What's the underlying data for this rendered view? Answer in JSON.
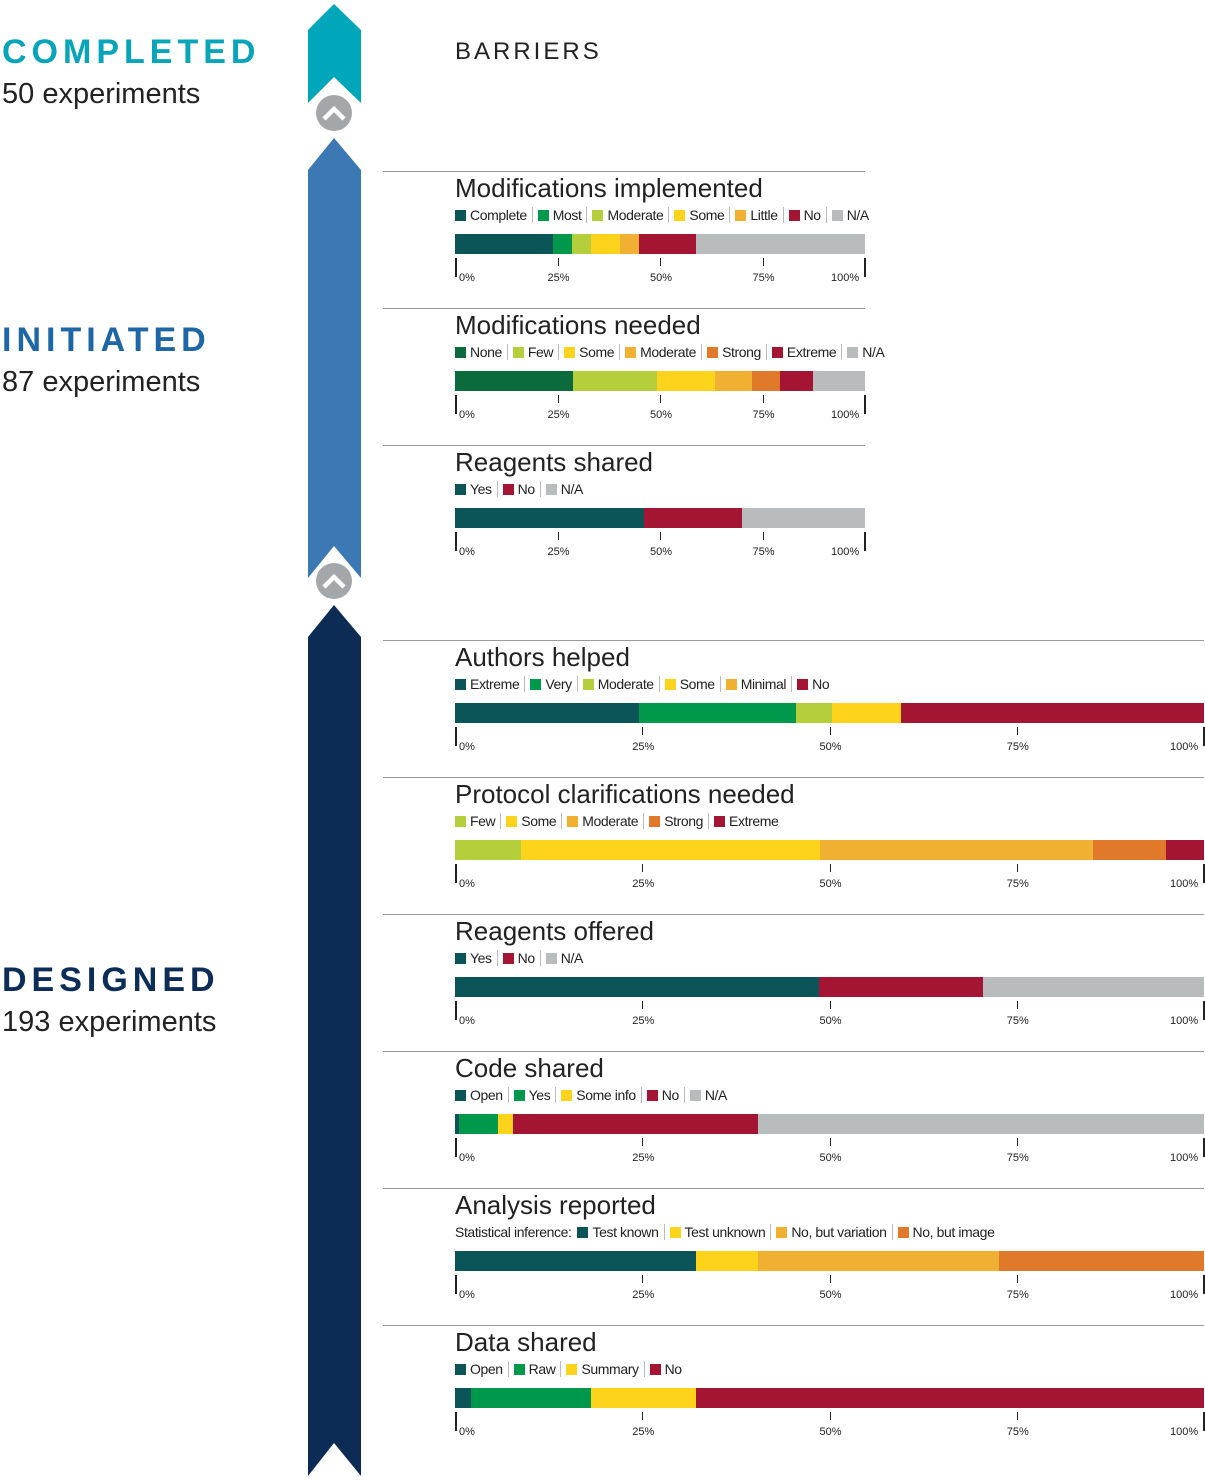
{
  "stages": [
    {
      "label": "COMPLETED",
      "count": "50 experiments",
      "color": "#06a5b9"
    },
    {
      "label": "INITIATED",
      "count": "87 experiments",
      "color": "#1f66a6"
    },
    {
      "label": "DESIGNED",
      "count": "193 experiments",
      "color": "#0c2d57"
    }
  ],
  "arrow_colors": [
    "#00a7bb",
    "#3c78b4",
    "#0c2c56"
  ],
  "arrow_icon": "chevron-up-circle-icon",
  "heading": "BARRIERS",
  "colors": {
    "teal": "#0b5559",
    "darkgreen": "#0b6b3d",
    "green": "#00994c",
    "lime": "#b5cf3c",
    "yellow": "#fdd31b",
    "amber": "#f0b133",
    "orange": "#e07a2a",
    "red": "#a31532",
    "gray": "#b8bcbd"
  },
  "chart_data": [
    {
      "type": "bar",
      "stacked": true,
      "orientation": "horizontal",
      "stage": "COMPLETED",
      "title": "Modifications implemented",
      "xlim": [
        0,
        100
      ],
      "ticks": [
        "0%",
        "25%",
        "50%",
        "75%",
        "100%"
      ],
      "series": [
        {
          "name": "Complete",
          "value": 24,
          "color": "teal"
        },
        {
          "name": "Most",
          "value": 4.6,
          "color": "green"
        },
        {
          "name": "Moderate",
          "value": 4.6,
          "color": "lime"
        },
        {
          "name": "Some",
          "value": 7,
          "color": "yellow"
        },
        {
          "name": "Little",
          "value": 4.6,
          "color": "amber"
        },
        {
          "name": "No",
          "value": 13.9,
          "color": "red"
        },
        {
          "name": "N/A",
          "value": 41.3,
          "color": "gray"
        }
      ]
    },
    {
      "type": "bar",
      "stacked": true,
      "orientation": "horizontal",
      "stage": "INITIATED",
      "title": "Modifications needed",
      "xlim": [
        0,
        100
      ],
      "ticks": [
        "0%",
        "25%",
        "50%",
        "75%",
        "100%"
      ],
      "series": [
        {
          "name": "None",
          "value": 28.7,
          "color": "darkgreen"
        },
        {
          "name": "Few",
          "value": 20.6,
          "color": "lime"
        },
        {
          "name": "Some",
          "value": 14,
          "color": "yellow"
        },
        {
          "name": "Moderate",
          "value": 9.1,
          "color": "amber"
        },
        {
          "name": "Strong",
          "value": 6.9,
          "color": "orange"
        },
        {
          "name": "Extreme",
          "value": 8.1,
          "color": "red"
        },
        {
          "name": "N/A",
          "value": 12.6,
          "color": "gray"
        }
      ]
    },
    {
      "type": "bar",
      "stacked": true,
      "orientation": "horizontal",
      "stage": "INITIATED",
      "title": "Reagents shared",
      "xlim": [
        0,
        100
      ],
      "ticks": [
        "0%",
        "25%",
        "50%",
        "75%",
        "100%"
      ],
      "series": [
        {
          "name": "Yes",
          "value": 46,
          "color": "teal"
        },
        {
          "name": "No",
          "value": 24.1,
          "color": "red"
        },
        {
          "name": "N/A",
          "value": 29.9,
          "color": "gray"
        }
      ]
    },
    {
      "type": "bar",
      "stacked": true,
      "orientation": "horizontal",
      "stage": "DESIGNED",
      "title": "Authors helped",
      "xlim": [
        0,
        100
      ],
      "ticks": [
        "0%",
        "25%",
        "50%",
        "75%",
        "100%"
      ],
      "series": [
        {
          "name": "Extreme",
          "value": 24.6,
          "color": "teal"
        },
        {
          "name": "Very",
          "value": 20.9,
          "color": "green"
        },
        {
          "name": "Moderate",
          "value": 4.8,
          "color": "lime"
        },
        {
          "name": "Some",
          "value": 9.3,
          "color": "yellow"
        },
        {
          "name": "Minimal",
          "value": 0,
          "color": "amber"
        },
        {
          "name": "No",
          "value": 40.4,
          "color": "red"
        }
      ]
    },
    {
      "type": "bar",
      "stacked": true,
      "orientation": "horizontal",
      "stage": "DESIGNED",
      "title": "Protocol clarifications needed",
      "xlim": [
        0,
        100
      ],
      "ticks": [
        "0%",
        "25%",
        "50%",
        "75%",
        "100%"
      ],
      "series": [
        {
          "name": "Few",
          "value": 8.8,
          "color": "lime"
        },
        {
          "name": "Some",
          "value": 39.9,
          "color": "yellow"
        },
        {
          "name": "Moderate",
          "value": 36.5,
          "color": "amber"
        },
        {
          "name": "Strong",
          "value": 9.7,
          "color": "orange"
        },
        {
          "name": "Extreme",
          "value": 5.1,
          "color": "red"
        }
      ]
    },
    {
      "type": "bar",
      "stacked": true,
      "orientation": "horizontal",
      "stage": "DESIGNED",
      "title": "Reagents offered",
      "xlim": [
        0,
        100
      ],
      "ticks": [
        "0%",
        "25%",
        "50%",
        "75%",
        "100%"
      ],
      "series": [
        {
          "name": "Yes",
          "value": 48.6,
          "color": "teal"
        },
        {
          "name": "No",
          "value": 21.9,
          "color": "red"
        },
        {
          "name": "N/A",
          "value": 29.5,
          "color": "gray"
        }
      ]
    },
    {
      "type": "bar",
      "stacked": true,
      "orientation": "horizontal",
      "stage": "DESIGNED",
      "title": "Code shared",
      "xlim": [
        0,
        100
      ],
      "ticks": [
        "0%",
        "25%",
        "50%",
        "75%",
        "100%"
      ],
      "series": [
        {
          "name": "Open",
          "value": 0.6,
          "color": "teal"
        },
        {
          "name": "Yes",
          "value": 5.1,
          "color": "green"
        },
        {
          "name": "Some info",
          "value": 2.1,
          "color": "yellow"
        },
        {
          "name": "No",
          "value": 32.6,
          "color": "red"
        },
        {
          "name": "N/A",
          "value": 59.6,
          "color": "gray"
        }
      ]
    },
    {
      "type": "bar",
      "stacked": true,
      "orientation": "horizontal",
      "stage": "DESIGNED",
      "title": "Analysis reported",
      "legend_prefix": "Statistical inference:",
      "xlim": [
        0,
        100
      ],
      "ticks": [
        "0%",
        "25%",
        "50%",
        "75%",
        "100%"
      ],
      "series": [
        {
          "name": "Test known",
          "value": 32.2,
          "color": "teal"
        },
        {
          "name": "Test unknown",
          "value": 8.2,
          "color": "yellow"
        },
        {
          "name": "No, but variation",
          "value": 32.2,
          "color": "amber"
        },
        {
          "name": "No, but image",
          "value": 27.4,
          "color": "orange"
        }
      ]
    },
    {
      "type": "bar",
      "stacked": true,
      "orientation": "horizontal",
      "stage": "DESIGNED",
      "title": "Data shared",
      "xlim": [
        0,
        100
      ],
      "ticks": [
        "0%",
        "25%",
        "50%",
        "75%",
        "100%"
      ],
      "series": [
        {
          "name": "Open",
          "value": 2.1,
          "color": "teal"
        },
        {
          "name": "Raw",
          "value": 16.1,
          "color": "green"
        },
        {
          "name": "Summary",
          "value": 14,
          "color": "yellow"
        },
        {
          "name": "No",
          "value": 67.8,
          "color": "red"
        }
      ]
    }
  ]
}
